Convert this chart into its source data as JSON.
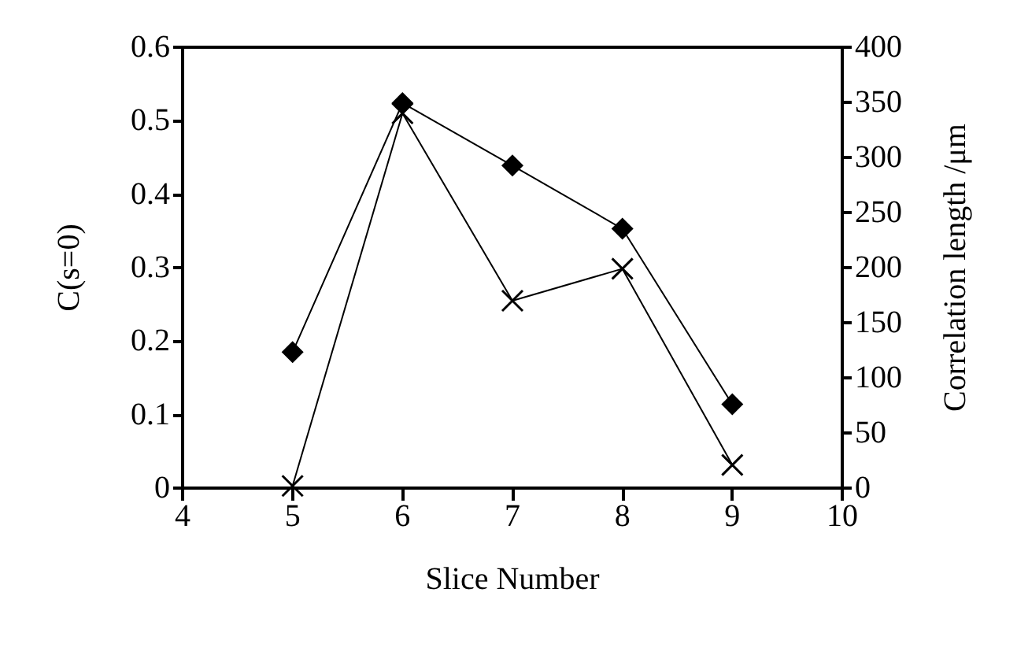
{
  "chart_data": {
    "type": "line",
    "xlabel": "Slice Number",
    "ylabel": "C(s=0)",
    "y2label": "Correlation length /μm",
    "x": [
      5,
      6,
      7,
      8,
      9
    ],
    "series": [
      {
        "color": "#000000",
        "marker": "diamond",
        "values": [
          0.185,
          0.524,
          0.439,
          0.353,
          0.114
        ]
      },
      {
        "color": "#000000",
        "marker": "cross",
        "axis": "y2",
        "values": [
          2,
          340,
          170,
          199,
          21
        ]
      }
    ],
    "xlim": [
      4,
      10
    ],
    "xticks": [
      4,
      5,
      6,
      7,
      8,
      9,
      10
    ],
    "ylim": [
      0,
      0.6
    ],
    "yticks": [
      0,
      0.1,
      0.2,
      0.3,
      0.4,
      0.5,
      0.6
    ],
    "y2lim": [
      0,
      400
    ],
    "y2ticks": [
      0,
      50,
      100,
      150,
      200,
      250,
      300,
      350,
      400
    ],
    "grid": false,
    "line_style": "solid"
  }
}
